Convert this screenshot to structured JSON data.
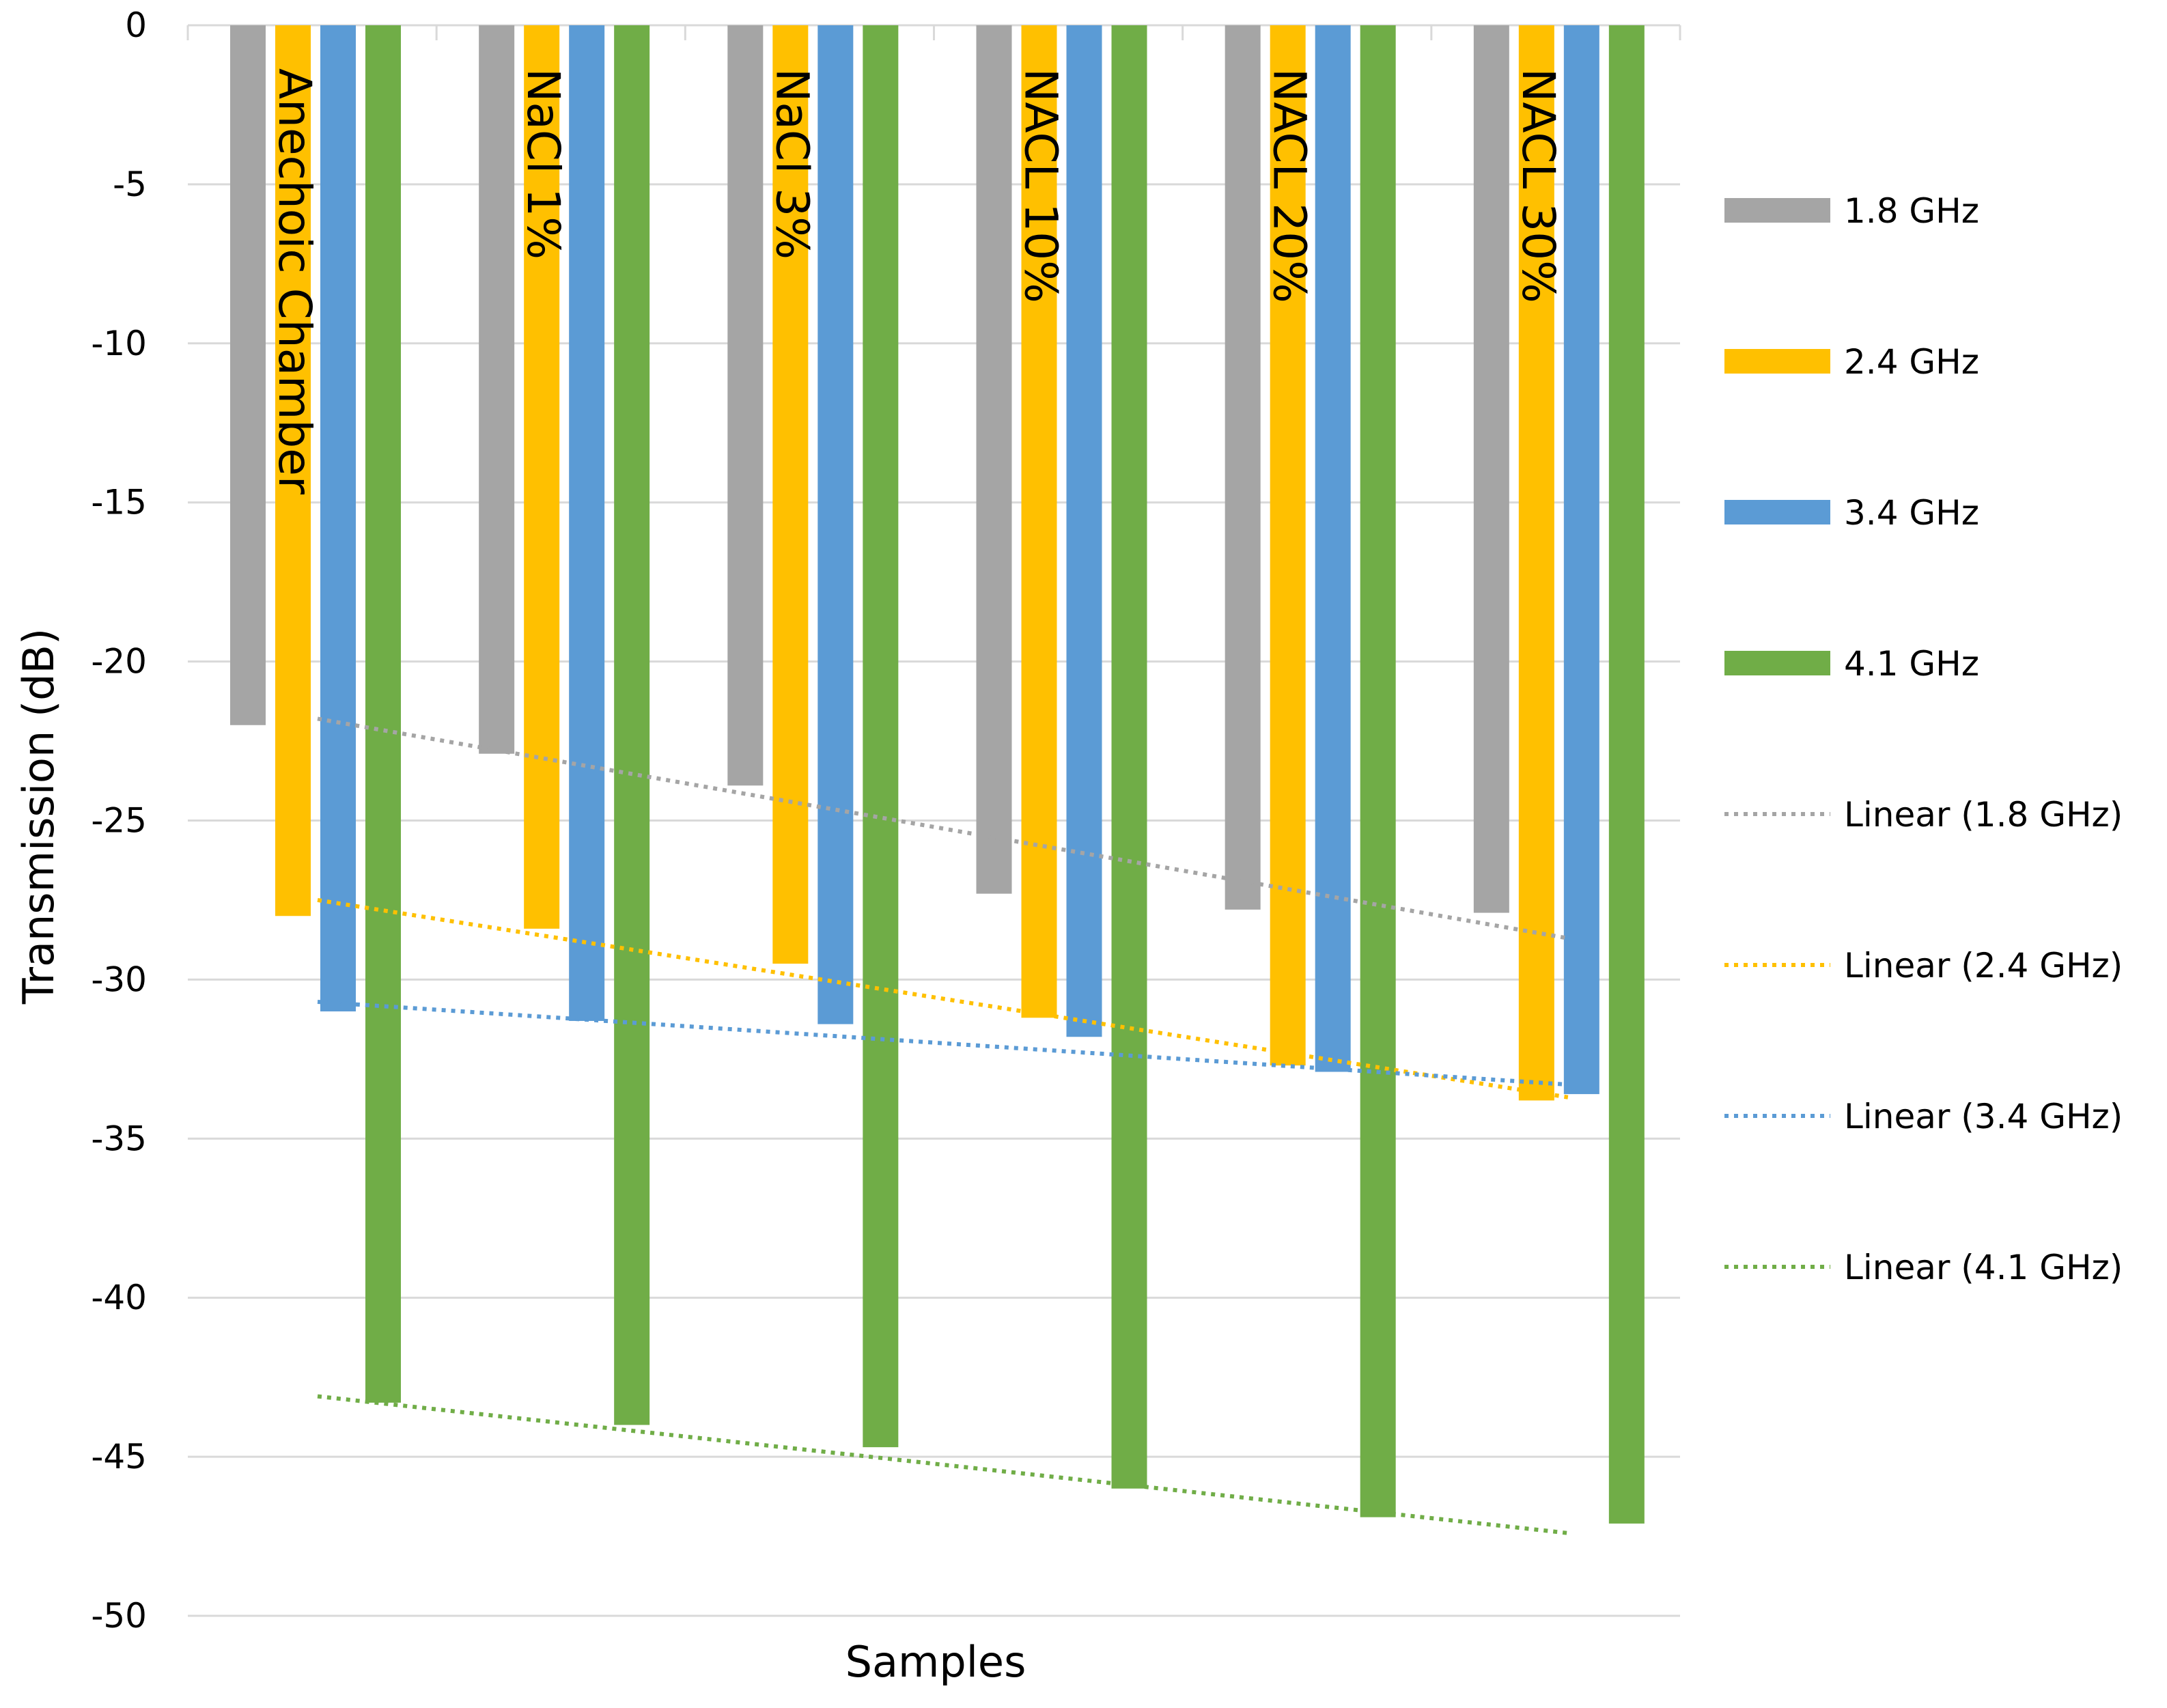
{
  "chart_data": {
    "type": "bar",
    "title": "",
    "xlabel": "Samples",
    "ylabel": "Transmission (dB)",
    "ylim": [
      -50,
      0
    ],
    "yticks": [
      0,
      -5,
      -10,
      -15,
      -20,
      -25,
      -30,
      -35,
      -40,
      -45,
      -50
    ],
    "grid": true,
    "legend_position": "right",
    "categories": [
      "Anechoic Chamber",
      "NaCl 1%",
      "NaCl 3%",
      "NACL 10%",
      "NACL 20%",
      "NACL 30%"
    ],
    "series": [
      {
        "name": "1.8 GHz",
        "color": "#A5A5A5",
        "values": [
          -22.0,
          -22.9,
          -23.9,
          -27.3,
          -27.8,
          -27.9
        ]
      },
      {
        "name": "2.4 GHz",
        "color": "#FFC000",
        "values": [
          -28.0,
          -28.4,
          -29.5,
          -31.2,
          -32.7,
          -33.8
        ]
      },
      {
        "name": "3.4 GHz",
        "color": "#5B9BD5",
        "values": [
          -31.0,
          -31.3,
          -31.4,
          -31.8,
          -32.9,
          -33.6
        ]
      },
      {
        "name": "4.1 GHz",
        "color": "#70AD47",
        "values": [
          -43.3,
          -44.0,
          -44.7,
          -46.0,
          -46.9,
          -47.1
        ]
      }
    ],
    "trendlines": [
      {
        "name": "Linear (1.8 GHz)",
        "color": "#A5A5A5",
        "series": "1.8 GHz",
        "start": -21.8,
        "end": -28.7
      },
      {
        "name": "Linear (2.4 GHz)",
        "color": "#FFC000",
        "series": "2.4 GHz",
        "start": -27.5,
        "end": -33.7
      },
      {
        "name": "Linear (3.4 GHz)",
        "color": "#5B9BD5",
        "series": "3.4 GHz",
        "start": -30.7,
        "end": -33.3
      },
      {
        "name": "Linear (4.1 GHz)",
        "color": "#70AD47",
        "series": "4.1 GHz",
        "start": -43.1,
        "end": -47.4
      }
    ]
  }
}
